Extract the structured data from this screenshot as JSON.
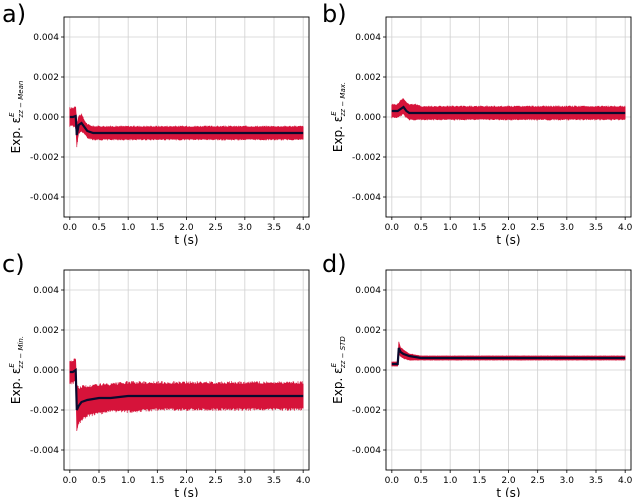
{
  "colors": {
    "band": "#d6133a",
    "mean_line": "#0a0a2e",
    "grid": "#d0d0d0",
    "frame": "#000000"
  },
  "chart_data": [
    {
      "type": "line",
      "panel": "a)",
      "ylabel_prefix": "Exp. ",
      "ylabel_symbol": "ε",
      "ylabel_sup": "E",
      "ylabel_sub": "zz − Mean",
      "xlabel": "t (s)",
      "xlim": [
        -0.1,
        4.1
      ],
      "ylim": [
        -0.005,
        0.005
      ],
      "xticks": [
        "0.0",
        "0.5",
        "1.0",
        "1.5",
        "2.0",
        "2.5",
        "3.0",
        "3.5",
        "4.0"
      ],
      "yticks": [
        "0.004",
        "0.002",
        "0.000",
        "-0.002",
        "-0.004"
      ],
      "grid": true,
      "series": [
        {
          "role": "mean",
          "x": [
            0.0,
            0.05,
            0.1,
            0.12,
            0.15,
            0.2,
            0.25,
            0.3,
            0.4,
            0.5,
            0.7,
            1.0,
            1.5,
            2.0,
            2.5,
            3.0,
            3.5,
            4.0
          ],
          "y": [
            0.0,
            0.0,
            5e-05,
            -0.0009,
            -0.0004,
            -0.0003,
            -0.0005,
            -0.0007,
            -0.0008,
            -0.0008,
            -0.0008,
            -0.0008,
            -0.0008,
            -0.0008,
            -0.0008,
            -0.0008,
            -0.0008,
            -0.0008
          ]
        },
        {
          "role": "upper",
          "x": [
            0.0,
            0.05,
            0.1,
            0.12,
            0.15,
            0.2,
            0.25,
            0.3,
            0.4,
            0.5,
            0.7,
            1.0,
            1.5,
            2.0,
            2.5,
            3.0,
            3.5,
            4.0
          ],
          "y": [
            0.0004,
            0.0004,
            0.0005,
            -0.0004,
            0.0,
            0.0001,
            -0.0002,
            -0.0004,
            -0.0005,
            -0.0005,
            -0.0005,
            -0.0005,
            -0.0005,
            -0.0005,
            -0.0005,
            -0.0005,
            -0.0005,
            -0.0005
          ]
        },
        {
          "role": "lower",
          "x": [
            0.0,
            0.05,
            0.1,
            0.12,
            0.15,
            0.2,
            0.25,
            0.3,
            0.4,
            0.5,
            0.7,
            1.0,
            1.5,
            2.0,
            2.5,
            3.0,
            3.5,
            4.0
          ],
          "y": [
            -0.0004,
            -0.0004,
            -0.0005,
            -0.0014,
            -0.0008,
            -0.0007,
            -0.0008,
            -0.001,
            -0.0011,
            -0.0011,
            -0.0011,
            -0.0011,
            -0.0011,
            -0.0011,
            -0.0011,
            -0.0011,
            -0.0011,
            -0.0011
          ]
        }
      ]
    },
    {
      "type": "line",
      "panel": "b)",
      "ylabel_prefix": "Exp. ",
      "ylabel_symbol": "ε",
      "ylabel_sup": "E",
      "ylabel_sub": "zz − Max.",
      "xlabel": "t (s)",
      "xlim": [
        -0.1,
        4.1
      ],
      "ylim": [
        -0.005,
        0.005
      ],
      "xticks": [
        "0.0",
        "0.5",
        "1.0",
        "1.5",
        "2.0",
        "2.5",
        "3.0",
        "3.5",
        "4.0"
      ],
      "yticks": [
        "0.004",
        "0.002",
        "0.000",
        "-0.002",
        "-0.004"
      ],
      "grid": true,
      "series": [
        {
          "role": "mean",
          "x": [
            0.0,
            0.05,
            0.1,
            0.15,
            0.2,
            0.25,
            0.3,
            0.4,
            0.5,
            0.7,
            1.0,
            1.5,
            2.0,
            2.5,
            3.0,
            3.5,
            4.0
          ],
          "y": [
            0.0003,
            0.0003,
            0.0003,
            0.0004,
            0.0005,
            0.0003,
            0.0002,
            0.0002,
            0.0002,
            0.0002,
            0.0002,
            0.0002,
            0.0002,
            0.0002,
            0.0002,
            0.0002,
            0.0002
          ]
        },
        {
          "role": "upper",
          "x": [
            0.0,
            0.05,
            0.1,
            0.15,
            0.2,
            0.25,
            0.3,
            0.4,
            0.5,
            0.7,
            1.0,
            1.5,
            2.0,
            2.5,
            3.0,
            3.5,
            4.0
          ],
          "y": [
            0.0006,
            0.0006,
            0.0006,
            0.0008,
            0.0009,
            0.0007,
            0.0006,
            0.0006,
            0.0005,
            0.0005,
            0.0005,
            0.0005,
            0.0005,
            0.0005,
            0.0005,
            0.0005,
            0.0005
          ]
        },
        {
          "role": "lower",
          "x": [
            0.0,
            0.05,
            0.1,
            0.15,
            0.2,
            0.25,
            0.3,
            0.4,
            0.5,
            0.7,
            1.0,
            1.5,
            2.0,
            2.5,
            3.0,
            3.5,
            4.0
          ],
          "y": [
            0.0,
            0.0,
            0.0,
            0.0001,
            0.0002,
            0.0,
            -0.0001,
            -0.0001,
            -0.0001,
            -0.0001,
            -0.0001,
            -0.0001,
            -0.0001,
            -0.0001,
            -0.0001,
            -0.0001,
            -0.0001
          ]
        }
      ]
    },
    {
      "type": "line",
      "panel": "c)",
      "ylabel_prefix": "Exp. ",
      "ylabel_symbol": "ε",
      "ylabel_sup": "E",
      "ylabel_sub": "zz − Min.",
      "xlabel": "t (s)",
      "xlim": [
        -0.1,
        4.1
      ],
      "ylim": [
        -0.005,
        0.005
      ],
      "xticks": [
        "0.0",
        "0.5",
        "1.0",
        "1.5",
        "2.0",
        "2.5",
        "3.0",
        "3.5",
        "4.0"
      ],
      "yticks": [
        "0.004",
        "0.002",
        "0.000",
        "-0.002",
        "-0.004"
      ],
      "grid": true,
      "series": [
        {
          "role": "mean",
          "x": [
            0.0,
            0.05,
            0.1,
            0.12,
            0.15,
            0.2,
            0.3,
            0.5,
            0.7,
            1.0,
            1.5,
            2.0,
            2.5,
            3.0,
            3.5,
            4.0
          ],
          "y": [
            -0.0001,
            -0.0001,
            0.0,
            -0.002,
            -0.0018,
            -0.0016,
            -0.0015,
            -0.0014,
            -0.0014,
            -0.0013,
            -0.0013,
            -0.0013,
            -0.0013,
            -0.0013,
            -0.0013,
            -0.0013
          ]
        },
        {
          "role": "upper",
          "x": [
            0.0,
            0.05,
            0.1,
            0.12,
            0.15,
            0.2,
            0.3,
            0.5,
            0.7,
            1.0,
            1.5,
            2.0,
            2.5,
            3.0,
            3.5,
            4.0
          ],
          "y": [
            0.0004,
            0.0004,
            0.0005,
            -0.0009,
            -0.001,
            -0.0009,
            -0.0009,
            -0.0008,
            -0.0008,
            -0.0007,
            -0.0007,
            -0.0007,
            -0.0007,
            -0.0007,
            -0.0007,
            -0.0007
          ]
        },
        {
          "role": "lower",
          "x": [
            0.0,
            0.05,
            0.1,
            0.12,
            0.15,
            0.2,
            0.3,
            0.5,
            0.7,
            1.0,
            1.5,
            2.0,
            2.5,
            3.0,
            3.5,
            4.0
          ],
          "y": [
            -0.0006,
            -0.0006,
            -0.0005,
            -0.003,
            -0.0026,
            -0.0024,
            -0.0022,
            -0.0021,
            -0.002,
            -0.002,
            -0.0019,
            -0.0019,
            -0.0019,
            -0.0019,
            -0.0019,
            -0.0019
          ]
        }
      ]
    },
    {
      "type": "line",
      "panel": "d)",
      "ylabel_prefix": "Exp. ",
      "ylabel_symbol": "ε",
      "ylabel_sup": "E",
      "ylabel_sub": "zz − STD",
      "xlabel": "t (s)",
      "xlim": [
        -0.1,
        4.1
      ],
      "ylim": [
        -0.005,
        0.005
      ],
      "xticks": [
        "0.0",
        "0.5",
        "1.0",
        "1.5",
        "2.0",
        "2.5",
        "3.0",
        "3.5",
        "4.0"
      ],
      "yticks": [
        "0.004",
        "0.002",
        "0.000",
        "-0.002",
        "-0.004"
      ],
      "grid": true,
      "series": [
        {
          "role": "mean",
          "x": [
            0.0,
            0.05,
            0.1,
            0.12,
            0.15,
            0.2,
            0.3,
            0.5,
            0.7,
            1.0,
            1.5,
            2.0,
            2.5,
            3.0,
            3.5,
            4.0
          ],
          "y": [
            0.0003,
            0.0003,
            0.0003,
            0.0011,
            0.0009,
            0.0008,
            0.0007,
            0.0006,
            0.0006,
            0.0006,
            0.0006,
            0.0006,
            0.0006,
            0.0006,
            0.0006,
            0.0006
          ]
        },
        {
          "role": "upper",
          "x": [
            0.0,
            0.05,
            0.1,
            0.12,
            0.15,
            0.2,
            0.3,
            0.5,
            0.7,
            1.0,
            1.5,
            2.0,
            2.5,
            3.0,
            3.5,
            4.0
          ],
          "y": [
            0.0004,
            0.0004,
            0.0004,
            0.0014,
            0.0011,
            0.001,
            0.0008,
            0.0007,
            0.0007,
            0.0007,
            0.0007,
            0.0007,
            0.0007,
            0.0007,
            0.0007,
            0.0007
          ]
        },
        {
          "role": "lower",
          "x": [
            0.0,
            0.05,
            0.1,
            0.12,
            0.15,
            0.2,
            0.3,
            0.5,
            0.7,
            1.0,
            1.5,
            2.0,
            2.5,
            3.0,
            3.5,
            4.0
          ],
          "y": [
            0.0002,
            0.0002,
            0.0002,
            0.0008,
            0.0007,
            0.0006,
            0.0005,
            0.0005,
            0.0005,
            0.0005,
            0.0005,
            0.0005,
            0.0005,
            0.0005,
            0.0005,
            0.0005
          ]
        }
      ]
    }
  ]
}
